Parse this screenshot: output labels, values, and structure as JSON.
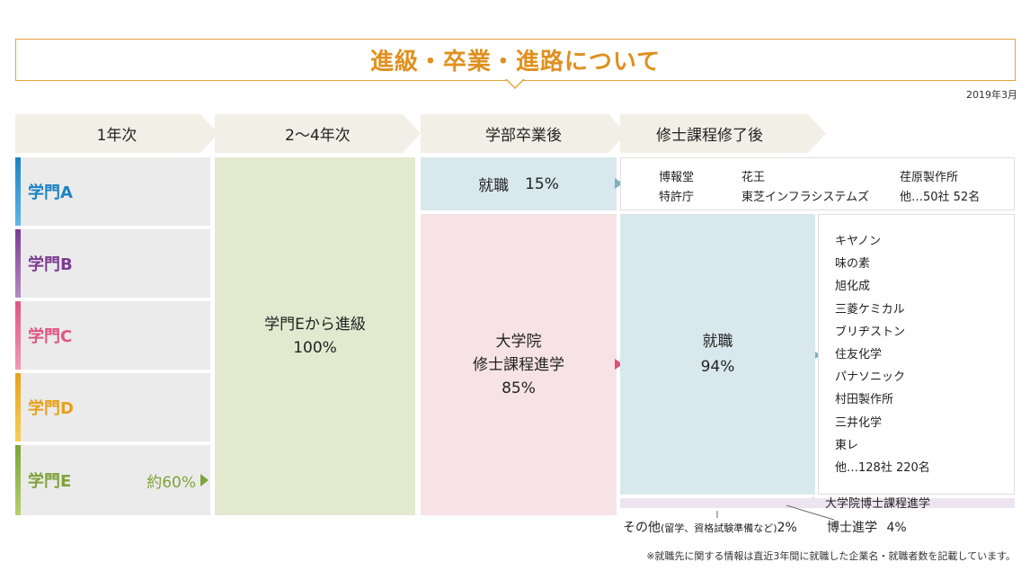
{
  "title": "進級・卒業・進路について",
  "date": "2019年3月",
  "headers": [
    "1年次",
    "2〜4年次",
    "学部卒業後",
    "修士課程修了後"
  ],
  "departments": [
    {
      "label": "学門A",
      "color": "#1b83c4"
    },
    {
      "label": "学門B",
      "color": "#7c3c93"
    },
    {
      "label": "学門C",
      "color": "#e0557f"
    },
    {
      "label": "学門D",
      "color": "#e8a11a"
    },
    {
      "label": "学門E",
      "color": "#7ea33a"
    }
  ],
  "dept_e_ratio": "約60%",
  "col2": {
    "line1": "学門Eから進級",
    "line2": "100%"
  },
  "undergrad_job": {
    "label": "就職",
    "value": "15%"
  },
  "undergrad_grad": {
    "line1": "大学院",
    "line2": "修士課程進学",
    "line3": "85%"
  },
  "companies_a": [
    "博報堂",
    "花王",
    "荏原製作所",
    "特許庁",
    "東芝インフラシステムズ",
    "他…50社 52名"
  ],
  "master_job": {
    "label": "就職",
    "value": "94%"
  },
  "companies_master": [
    "キヤノン",
    "味の素",
    "旭化成",
    "三菱ケミカル",
    "ブリヂストン",
    "住友化学",
    "パナソニック",
    "村田製作所",
    "三井化学",
    "東レ",
    "他…128社 220名"
  ],
  "doctor_course": "大学院博士課程進学",
  "other": {
    "label": "その他",
    "detail": "(留学、資格試験準備など)",
    "value": "2%"
  },
  "doctor": {
    "label": "博士進学",
    "value": "4%"
  },
  "note": "※就職先に関する情報は直近3年間に就職した企業名・就職者数を記載しています。",
  "colors": {
    "accent": "#e0901f",
    "arrow_blue": "#7fb0c0",
    "arrow_pink": "#e04f7d"
  }
}
